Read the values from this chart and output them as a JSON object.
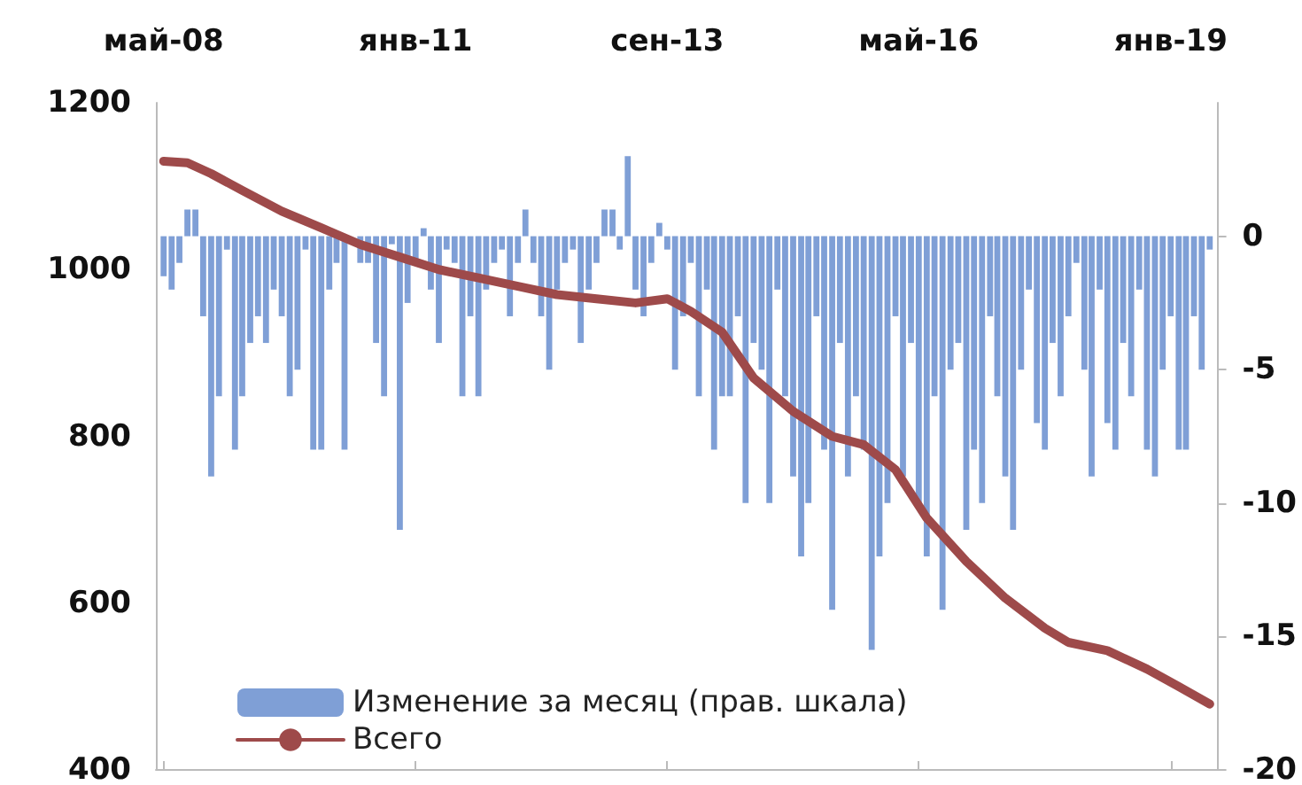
{
  "chart_data": {
    "type": "bar",
    "xlim": [
      "2008-04",
      "2019-07"
    ],
    "xticks": [
      {
        "value": "2008-05",
        "label": "май-08"
      },
      {
        "value": "2011-01",
        "label": "янв-11"
      },
      {
        "value": "2013-09",
        "label": "сен-13"
      },
      {
        "value": "2016-05",
        "label": "май-16"
      },
      {
        "value": "2019-01",
        "label": "янв-19"
      }
    ],
    "ylim": [
      400,
      1200
    ],
    "yticks": [
      400,
      600,
      800,
      1000,
      1200
    ],
    "y2lim": [
      -20,
      5
    ],
    "y2ticks": [
      -20,
      -15,
      -10,
      -5,
      0
    ],
    "grid": false,
    "legend": "bottom left",
    "series": [
      {
        "name": "Изменение за месяц (прав. шкала)",
        "axis": "y2",
        "color": "#7f9fd6",
        "x": [
          "2008-05",
          "2008-06",
          "2008-07",
          "2008-08",
          "2008-09",
          "2008-10",
          "2008-11",
          "2008-12",
          "2009-01",
          "2009-02",
          "2009-03",
          "2009-04",
          "2009-05",
          "2009-06",
          "2009-07",
          "2009-08",
          "2009-09",
          "2009-10",
          "2009-11",
          "2009-12",
          "2010-01",
          "2010-02",
          "2010-03",
          "2010-04",
          "2010-05",
          "2010-06",
          "2010-07",
          "2010-08",
          "2010-09",
          "2010-10",
          "2010-11",
          "2010-12",
          "2011-01",
          "2011-02",
          "2011-03",
          "2011-04",
          "2011-05",
          "2011-06",
          "2011-07",
          "2011-08",
          "2011-09",
          "2011-10",
          "2011-11",
          "2011-12",
          "2012-01",
          "2012-02",
          "2012-03",
          "2012-04",
          "2012-05",
          "2012-06",
          "2012-07",
          "2012-08",
          "2012-09",
          "2012-10",
          "2012-11",
          "2012-12",
          "2013-01",
          "2013-02",
          "2013-03",
          "2013-04",
          "2013-05",
          "2013-06",
          "2013-07",
          "2013-08",
          "2013-09",
          "2013-10",
          "2013-11",
          "2013-12",
          "2014-01",
          "2014-02",
          "2014-03",
          "2014-04",
          "2014-05",
          "2014-06",
          "2014-07",
          "2014-08",
          "2014-09",
          "2014-10",
          "2014-11",
          "2014-12",
          "2015-01",
          "2015-02",
          "2015-03",
          "2015-04",
          "2015-05",
          "2015-06",
          "2015-07",
          "2015-08",
          "2015-09",
          "2015-10",
          "2015-11",
          "2015-12",
          "2016-01",
          "2016-02",
          "2016-03",
          "2016-04",
          "2016-05",
          "2016-06",
          "2016-07",
          "2016-08",
          "2016-09",
          "2016-10",
          "2016-11",
          "2016-12",
          "2017-01",
          "2017-02",
          "2017-03",
          "2017-04",
          "2017-05",
          "2017-06",
          "2017-07",
          "2017-08",
          "2017-09",
          "2017-10",
          "2017-11",
          "2017-12",
          "2018-01",
          "2018-02",
          "2018-03",
          "2018-04",
          "2018-05",
          "2018-06",
          "2018-07",
          "2018-08",
          "2018-09",
          "2018-10",
          "2018-11",
          "2018-12",
          "2019-01",
          "2019-02",
          "2019-03",
          "2019-04",
          "2019-05",
          "2019-06"
        ],
        "values": [
          -1.5,
          -2,
          -1,
          1,
          1,
          -3,
          -9,
          -6,
          -0.5,
          -8,
          -6,
          -4,
          -3,
          -4,
          -2,
          -3,
          -6,
          -5,
          -0.5,
          -8,
          -8,
          -2,
          -1,
          -8,
          null,
          -1,
          -1,
          -4,
          -6,
          -0.3,
          -11,
          -2.5,
          -1,
          0.3,
          -2,
          -4,
          -0.5,
          -1,
          -6,
          -3,
          -6,
          -2,
          -1,
          -0.5,
          -3,
          -1,
          1,
          -1,
          -3,
          -5,
          -2,
          -1,
          -0.5,
          -4,
          -2,
          -1,
          1,
          1,
          -0.5,
          3,
          -2,
          -3,
          -1,
          0.5,
          -0.5,
          -5,
          -3,
          -1,
          -6,
          -2,
          -8,
          -6,
          -6,
          -3,
          -10,
          -4,
          -5,
          -10,
          -2,
          -6,
          -9,
          -12,
          -10,
          -3,
          -8,
          -14,
          -4,
          -9,
          -6,
          -8,
          -15.5,
          -12,
          -10,
          -3,
          -9,
          -4,
          -10,
          -12,
          -6,
          -14,
          -5,
          -4,
          -11,
          -8,
          -10,
          -3,
          -6,
          -9,
          -11,
          -5,
          -2,
          -7,
          -8,
          -4,
          -6,
          -3,
          -1,
          -5,
          -9,
          -2,
          -7,
          -8,
          -4,
          -6,
          -2,
          -8,
          -9,
          -5,
          -3,
          -8,
          -8,
          -3,
          -5,
          -0.5
        ]
      },
      {
        "name": "Всего",
        "type": "line",
        "color": "#9e4a4a",
        "x": [
          "2008-05",
          "2008-08",
          "2008-11",
          "2009-03",
          "2009-08",
          "2010-01",
          "2010-06",
          "2010-11",
          "2011-04",
          "2011-09",
          "2012-02",
          "2012-07",
          "2012-12",
          "2013-05",
          "2013-09",
          "2013-12",
          "2014-04",
          "2014-08",
          "2015-01",
          "2015-06",
          "2015-10",
          "2016-02",
          "2016-06",
          "2016-11",
          "2017-04",
          "2017-09",
          "2017-12",
          "2018-05",
          "2018-10",
          "2019-02",
          "2019-06"
        ],
        "values": [
          1130,
          1128,
          1115,
          1095,
          1070,
          1050,
          1030,
          1015,
          1000,
          990,
          980,
          970,
          965,
          960,
          965,
          950,
          925,
          870,
          830,
          800,
          790,
          760,
          702,
          650,
          606,
          570,
          553,
          543,
          521,
          500,
          479
        ]
      }
    ]
  }
}
